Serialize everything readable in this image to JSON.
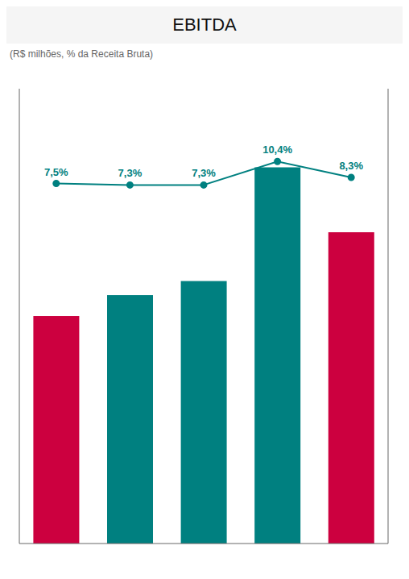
{
  "chart_data": {
    "type": "bar",
    "title": "EBITDA",
    "subtitle": "(R$ milhões, % da Receita Bruta)",
    "categories": [
      null,
      null,
      null,
      null,
      null
    ],
    "series": [
      {
        "type": "bar",
        "colors": [
          "#CC003F",
          "#008080",
          "#008080",
          "#008080",
          "#CC003F"
        ],
        "values": [
          130,
          142,
          150,
          215,
          178
        ]
      },
      {
        "type": "line",
        "axis": "y2",
        "color": "#008080",
        "marker": "circle",
        "line_style": "solid",
        "data_labels": true,
        "values": [
          7.5,
          7.3,
          7.3,
          10.4,
          8.3
        ],
        "value_labels": [
          "7,5%",
          "7,3%",
          "7,3%",
          "10,4%",
          "8,3%"
        ]
      }
    ],
    "ylim": [
      0,
      260
    ],
    "y2lim": [
      -40,
      20
    ],
    "tick_labels": false
  }
}
